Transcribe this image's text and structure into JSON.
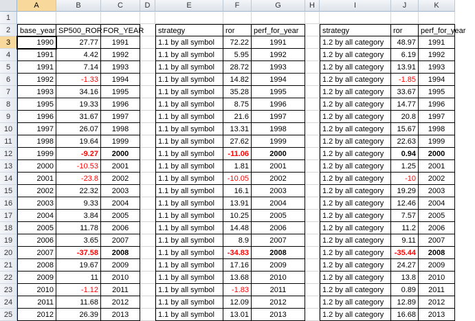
{
  "columns": [
    "A",
    "B",
    "C",
    "D",
    "E",
    "F",
    "G",
    "H",
    "I",
    "J",
    "K"
  ],
  "active_cell": "A3",
  "rows": [
    {
      "n": "1",
      "cells": [
        "",
        "",
        "",
        "",
        "",
        "",
        "",
        "",
        "",
        "",
        ""
      ]
    },
    {
      "n": "2",
      "cells": [
        "base_year",
        "SP500_ROR",
        "FOR_YEAR",
        "",
        "strategy",
        "ror",
        "perf_for_year",
        "",
        "strategy",
        "ror",
        "perf_for_year"
      ]
    },
    {
      "n": "3",
      "cells": [
        "1990",
        "27.77",
        "1991",
        "",
        "1.1 by all symbol",
        "72.22",
        "1991",
        "",
        "1.2 by all category",
        "48.97",
        "1991"
      ]
    },
    {
      "n": "4",
      "cells": [
        "1991",
        "4.42",
        "1992",
        "",
        "1.1 by all symbol",
        "5.95",
        "1992",
        "",
        "1.2 by all category",
        "6.19",
        "1992"
      ]
    },
    {
      "n": "5",
      "cells": [
        "1991",
        "7.14",
        "1993",
        "",
        "1.1 by all symbol",
        "28.72",
        "1993",
        "",
        "1.2 by all category",
        "13.91",
        "1993"
      ]
    },
    {
      "n": "6",
      "cells": [
        "1992",
        "-1.33",
        "1994",
        "",
        "1.1 by all symbol",
        "14.82",
        "1994",
        "",
        "1.2 by all category",
        "-1.85",
        "1994"
      ]
    },
    {
      "n": "7",
      "cells": [
        "1993",
        "34.16",
        "1995",
        "",
        "1.1 by all symbol",
        "35.28",
        "1995",
        "",
        "1.2 by all category",
        "33.67",
        "1995"
      ]
    },
    {
      "n": "8",
      "cells": [
        "1995",
        "19.33",
        "1996",
        "",
        "1.1 by all symbol",
        "8.75",
        "1996",
        "",
        "1.2 by all category",
        "14.77",
        "1996"
      ]
    },
    {
      "n": "9",
      "cells": [
        "1996",
        "31.67",
        "1997",
        "",
        "1.1 by all symbol",
        "21.6",
        "1997",
        "",
        "1.2 by all category",
        "20.8",
        "1997"
      ]
    },
    {
      "n": "10",
      "cells": [
        "1997",
        "26.07",
        "1998",
        "",
        "1.1 by all symbol",
        "13.31",
        "1998",
        "",
        "1.2 by all category",
        "15.67",
        "1998"
      ]
    },
    {
      "n": "11",
      "cells": [
        "1998",
        "19.64",
        "1999",
        "",
        "1.1 by all symbol",
        "27.62",
        "1999",
        "",
        "1.2 by all category",
        "22.63",
        "1999"
      ]
    },
    {
      "n": "12",
      "cells": [
        "1999",
        "-9.27",
        "2000",
        "",
        "1.1 by all symbol",
        "-11.06",
        "2000",
        "",
        "1.2 by all category",
        "0.94",
        "2000"
      ]
    },
    {
      "n": "13",
      "cells": [
        "2000",
        "-10.53",
        "2001",
        "",
        "1.1 by all symbol",
        "1.81",
        "2001",
        "",
        "1.2 by all category",
        "1.25",
        "2001"
      ]
    },
    {
      "n": "14",
      "cells": [
        "2001",
        "-23.8",
        "2002",
        "",
        "1.1 by all symbol",
        "-10.05",
        "2002",
        "",
        "1.2 by all category",
        "-10",
        "2002"
      ]
    },
    {
      "n": "15",
      "cells": [
        "2002",
        "22.32",
        "2003",
        "",
        "1.1 by all symbol",
        "16.1",
        "2003",
        "",
        "1.2 by all category",
        "19.29",
        "2003"
      ]
    },
    {
      "n": "16",
      "cells": [
        "2003",
        "9.33",
        "2004",
        "",
        "1.1 by all symbol",
        "13.91",
        "2004",
        "",
        "1.2 by all category",
        "12.46",
        "2004"
      ]
    },
    {
      "n": "17",
      "cells": [
        "2004",
        "3.84",
        "2005",
        "",
        "1.1 by all symbol",
        "10.25",
        "2005",
        "",
        "1.2 by all category",
        "7.57",
        "2005"
      ]
    },
    {
      "n": "18",
      "cells": [
        "2005",
        "11.78",
        "2006",
        "",
        "1.1 by all symbol",
        "14.48",
        "2006",
        "",
        "1.2 by all category",
        "11.2",
        "2006"
      ]
    },
    {
      "n": "19",
      "cells": [
        "2006",
        "3.65",
        "2007",
        "",
        "1.1 by all symbol",
        "8.9",
        "2007",
        "",
        "1.2 by all category",
        "9.11",
        "2007"
      ]
    },
    {
      "n": "20",
      "cells": [
        "2007",
        "-37.58",
        "2008",
        "",
        "1.1 by all symbol",
        "-34.83",
        "2008",
        "",
        "1.2 by all category",
        "-35.44",
        "2008"
      ]
    },
    {
      "n": "21",
      "cells": [
        "2008",
        "19.67",
        "2009",
        "",
        "1.1 by all symbol",
        "17.16",
        "2009",
        "",
        "1.2 by all category",
        "24.27",
        "2009"
      ]
    },
    {
      "n": "22",
      "cells": [
        "2009",
        "11",
        "2010",
        "",
        "1.1 by all symbol",
        "13.68",
        "2010",
        "",
        "1.2 by all category",
        "13.8",
        "2010"
      ]
    },
    {
      "n": "23",
      "cells": [
        "2010",
        "-1.12",
        "2011",
        "",
        "1.1 by all symbol",
        "-1.83",
        "2011",
        "",
        "1.2 by all category",
        "0.89",
        "2011"
      ]
    },
    {
      "n": "24",
      "cells": [
        "2011",
        "11.68",
        "2012",
        "",
        "1.1 by all symbol",
        "12.09",
        "2012",
        "",
        "1.2 by all category",
        "12.89",
        "2012"
      ]
    },
    {
      "n": "25",
      "cells": [
        "2012",
        "26.39",
        "2013",
        "",
        "1.1 by all symbol",
        "13.01",
        "2013",
        "",
        "1.2 by all category",
        "16.68",
        "2013"
      ]
    }
  ],
  "bold_rows": [
    "12",
    "20"
  ],
  "colors": {
    "negative": "#ff0000",
    "active_header": "#f9d99b",
    "grid": "#d4d4d4"
  }
}
